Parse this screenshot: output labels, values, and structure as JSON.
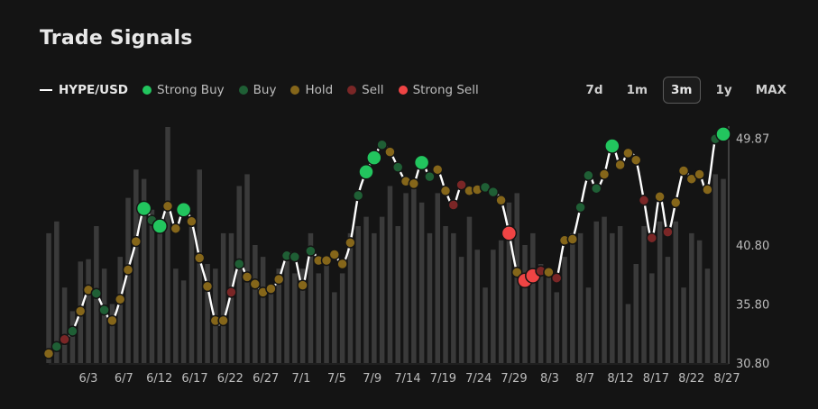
{
  "header": {
    "title": "Trade Signals"
  },
  "legend": {
    "pair": "HYPE/USD",
    "items": [
      {
        "label": "Strong Buy",
        "color": "#22c55e"
      },
      {
        "label": "Buy",
        "color": "#1f5f35"
      },
      {
        "label": "Hold",
        "color": "#85661a"
      },
      {
        "label": "Sell",
        "color": "#7a2626"
      },
      {
        "label": "Strong Sell",
        "color": "#ef4444"
      }
    ]
  },
  "ranges": {
    "items": [
      "7d",
      "1m",
      "3m",
      "1y",
      "MAX"
    ],
    "active": "3m"
  },
  "chart_data": {
    "type": "line",
    "series_name": "HYPE/USD",
    "y_ticks": [
      49.87,
      40.8,
      35.8,
      30.8
    ],
    "ylim": [
      30.8,
      50.5
    ],
    "x_tick_labels": [
      "6/3",
      "6/7",
      "6/12",
      "6/17",
      "6/22",
      "6/27",
      "7/1",
      "7/5",
      "7/9",
      "7/14",
      "7/19",
      "7/24",
      "7/29",
      "8/3",
      "8/7",
      "8/12",
      "8/17",
      "8/22",
      "8/27"
    ],
    "price": [
      31.6,
      32.2,
      32.8,
      33.5,
      35.2,
      37.0,
      36.7,
      35.3,
      34.4,
      36.2,
      38.7,
      41.1,
      43.9,
      42.9,
      42.4,
      44.1,
      42.2,
      43.8,
      42.8,
      39.7,
      37.3,
      34.4,
      34.4,
      36.8,
      39.2,
      38.1,
      37.5,
      36.8,
      37.1,
      37.9,
      39.9,
      39.8,
      37.4,
      40.3,
      39.5,
      39.5,
      40.0,
      39.2,
      41.0,
      45.0,
      47.0,
      48.2,
      49.3,
      48.7,
      47.4,
      46.2,
      46.0,
      47.8,
      46.6,
      47.2,
      45.4,
      44.2,
      45.9,
      45.4,
      45.5,
      45.7,
      45.3,
      44.6,
      41.8,
      38.5,
      37.8,
      38.2,
      38.6,
      38.5,
      38.0,
      41.2,
      41.3,
      44.0,
      46.7,
      45.6,
      46.8,
      49.2,
      47.6,
      48.6,
      48.0,
      44.6,
      41.4,
      44.9,
      41.9,
      44.4,
      47.1,
      46.4,
      46.8,
      45.5,
      49.8,
      50.2
    ],
    "signals": [
      "Hold",
      "Buy",
      "Sell",
      "Buy",
      "Hold",
      "Hold",
      "Buy",
      "Buy",
      "Hold",
      "Hold",
      "Hold",
      "Hold",
      "Strong Buy",
      "Buy",
      "Strong Buy",
      "Hold",
      "Hold",
      "Strong Buy",
      "Hold",
      "Hold",
      "Hold",
      "Hold",
      "Hold",
      "Sell",
      "Buy",
      "Hold",
      "Hold",
      "Hold",
      "Hold",
      "Hold",
      "Buy",
      "Buy",
      "Hold",
      "Buy",
      "Hold",
      "Hold",
      "Hold",
      "Hold",
      "Hold",
      "Buy",
      "Strong Buy",
      "Strong Buy",
      "Buy",
      "Hold",
      "Buy",
      "Hold",
      "Hold",
      "Strong Buy",
      "Buy",
      "Hold",
      "Hold",
      "Sell",
      "Sell",
      "Hold",
      "Hold",
      "Buy",
      "Buy",
      "Hold",
      "Strong Sell",
      "Hold",
      "Strong Sell",
      "Strong Sell",
      "Sell",
      "Hold",
      "Sell",
      "Hold",
      "Hold",
      "Buy",
      "Buy",
      "Buy",
      "Hold",
      "Strong Buy",
      "Hold",
      "Hold",
      "Hold",
      "Sell",
      "Sell",
      "Hold",
      "Sell",
      "Hold",
      "Hold",
      "Hold",
      "Hold",
      "Hold",
      "Buy",
      "Strong Buy"
    ],
    "volume": [
      0.55,
      0.6,
      0.32,
      0.22,
      0.43,
      0.44,
      0.58,
      0.4,
      0.25,
      0.45,
      0.7,
      0.82,
      0.78,
      0.65,
      0.55,
      1.0,
      0.4,
      0.35,
      0.58,
      0.82,
      0.42,
      0.4,
      0.55,
      0.55,
      0.75,
      0.8,
      0.5,
      0.45,
      0.3,
      0.4,
      0.45,
      0.38,
      0.4,
      0.55,
      0.38,
      0.42,
      0.3,
      0.38,
      0.55,
      0.58,
      0.62,
      0.55,
      0.62,
      0.75,
      0.58,
      0.72,
      0.75,
      0.68,
      0.55,
      0.72,
      0.58,
      0.55,
      0.45,
      0.62,
      0.48,
      0.32,
      0.48,
      0.52,
      0.68,
      0.72,
      0.5,
      0.55,
      0.42,
      0.4,
      0.3,
      0.45,
      0.55,
      0.55,
      0.32,
      0.6,
      0.62,
      0.55,
      0.58,
      0.25,
      0.42,
      0.58,
      0.38,
      0.6,
      0.45,
      0.6,
      0.32,
      0.55,
      0.52,
      0.4,
      0.8,
      0.78
    ],
    "bar_color": "#3a3a3a",
    "line_color": "#ffffff",
    "grid": false,
    "legend_position": "top-left"
  }
}
